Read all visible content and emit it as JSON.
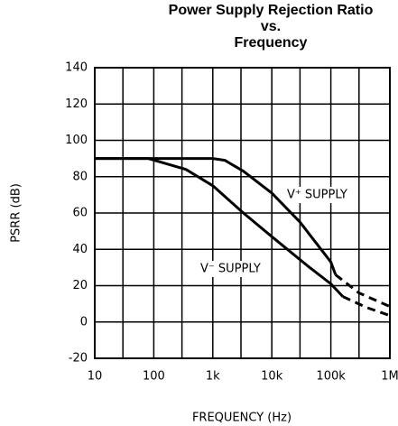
{
  "chart_data": {
    "type": "line",
    "title": [
      "Power Supply Rejection Ratio",
      "vs.",
      "Frequency"
    ],
    "xlabel": "FREQUENCY (Hz)",
    "ylabel": "PSRR (dB)",
    "xscale": "log",
    "xlim": [
      10,
      1000000
    ],
    "ylim": [
      -20,
      140
    ],
    "xticks": [
      10,
      100,
      {
        "value": 1000,
        "label": "1k"
      },
      {
        "value": 10000,
        "label": "10k"
      },
      {
        "value": 100000,
        "label": "100k"
      },
      {
        "value": 1000000,
        "label": "1M"
      }
    ],
    "xminor": [
      30,
      300,
      3000,
      30000,
      300000
    ],
    "yticks": [
      -20,
      0,
      20,
      40,
      60,
      80,
      100,
      120,
      140
    ],
    "grid": true,
    "series": [
      {
        "name": "V⁺ SUPPLY",
        "color": "#000000",
        "x": [
          10,
          1000,
          1600,
          3300,
          10000,
          30000,
          100000,
          120000
        ],
        "values": [
          90,
          90,
          89,
          83,
          71,
          55,
          33,
          26
        ],
        "dashed_x": [
          120000,
          300000,
          1000000
        ],
        "dashed_values": [
          26,
          16,
          8.5
        ]
      },
      {
        "name": "V⁻ SUPPLY",
        "color": "#000000",
        "x": [
          10,
          80,
          350,
          1000,
          3300,
          10000,
          40000,
          100000,
          160000
        ],
        "values": [
          90,
          90,
          84,
          75,
          60,
          47,
          31,
          21,
          14
        ],
        "dashed_x": [
          160000,
          400000,
          1000000
        ],
        "dashed_values": [
          14,
          8,
          3.5
        ]
      }
    ]
  }
}
